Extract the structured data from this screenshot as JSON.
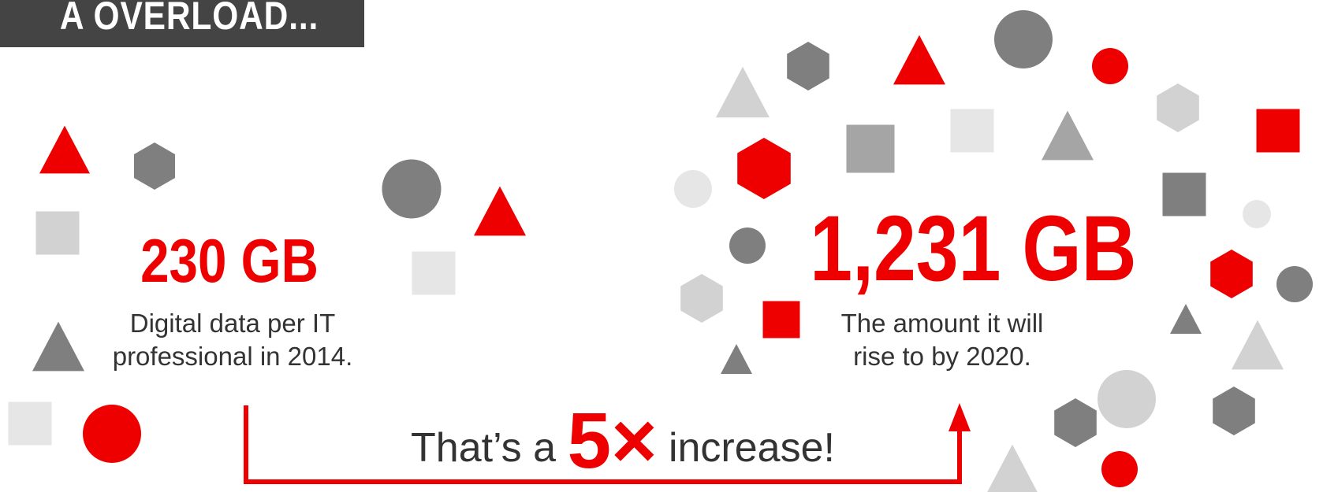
{
  "banner": {
    "text": "A OVERLOAD..."
  },
  "stat_left": {
    "value": "230 GB",
    "caption_line1": "Digital data per IT",
    "caption_line2": "professional in 2014."
  },
  "stat_right": {
    "value": "1,231 GB",
    "caption_line1": "The amount it will",
    "caption_line2": "rise to by 2020."
  },
  "comparison": {
    "prefix": "That’s a ",
    "multiplier": "5×",
    "suffix": " increase!"
  },
  "colors": {
    "accent_red": "#ee0000",
    "banner_bg": "#444444",
    "dark_gray": "#7f7f7f",
    "mid_gray": "#a5a5a5",
    "light_gray": "#d2d2d2",
    "pale_gray": "#e6e6e6"
  }
}
